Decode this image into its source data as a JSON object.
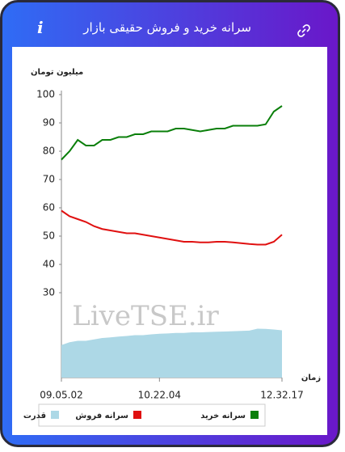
{
  "header": {
    "title": "سرانه خرید و فروش حقیقی بازار",
    "info_icon": "i"
  },
  "chart_data": {
    "type": "line",
    "y_label": "میلیون تومان",
    "x_label": "زمان",
    "watermark": "LiveTSE.ir",
    "categories": [
      "09.05.02",
      null,
      null,
      null,
      null,
      null,
      null,
      null,
      null,
      null,
      null,
      null,
      "10.22.04",
      null,
      null,
      null,
      null,
      null,
      null,
      null,
      null,
      null,
      null,
      null,
      null,
      null,
      null,
      "12.32.17"
    ],
    "ylim": [
      0,
      100
    ],
    "yticks": [
      30,
      40,
      50,
      60,
      70,
      80,
      90,
      100
    ],
    "series": [
      {
        "name": "سرانه خرید",
        "color": "#0a7f0a",
        "kind": "line",
        "values": [
          77,
          80,
          84,
          82,
          82,
          84,
          84,
          85,
          85,
          86,
          86,
          87,
          87,
          87,
          88,
          88,
          87.5,
          87,
          87.5,
          88,
          88,
          89,
          89,
          89,
          89,
          89.5,
          94,
          96
        ]
      },
      {
        "name": "سرانه فروش",
        "color": "#e01010",
        "kind": "line",
        "values": [
          59,
          57,
          56,
          55,
          53.5,
          52.5,
          52,
          51.5,
          51,
          51,
          50.5,
          50,
          49.5,
          49,
          48.5,
          48,
          48,
          47.8,
          47.8,
          48,
          48,
          47.8,
          47.5,
          47.2,
          47,
          47,
          48,
          50.5
        ]
      },
      {
        "name": "قدرت",
        "color": "#add8e6",
        "kind": "area",
        "values": [
          11.5,
          12.5,
          13,
          13,
          13.5,
          14,
          14.2,
          14.5,
          14.7,
          15,
          15,
          15.3,
          15.5,
          15.6,
          15.8,
          15.8,
          16,
          16,
          16.1,
          16.2,
          16.3,
          16.4,
          16.5,
          16.6,
          17.3,
          17.2,
          17,
          16.7
        ]
      }
    ]
  }
}
